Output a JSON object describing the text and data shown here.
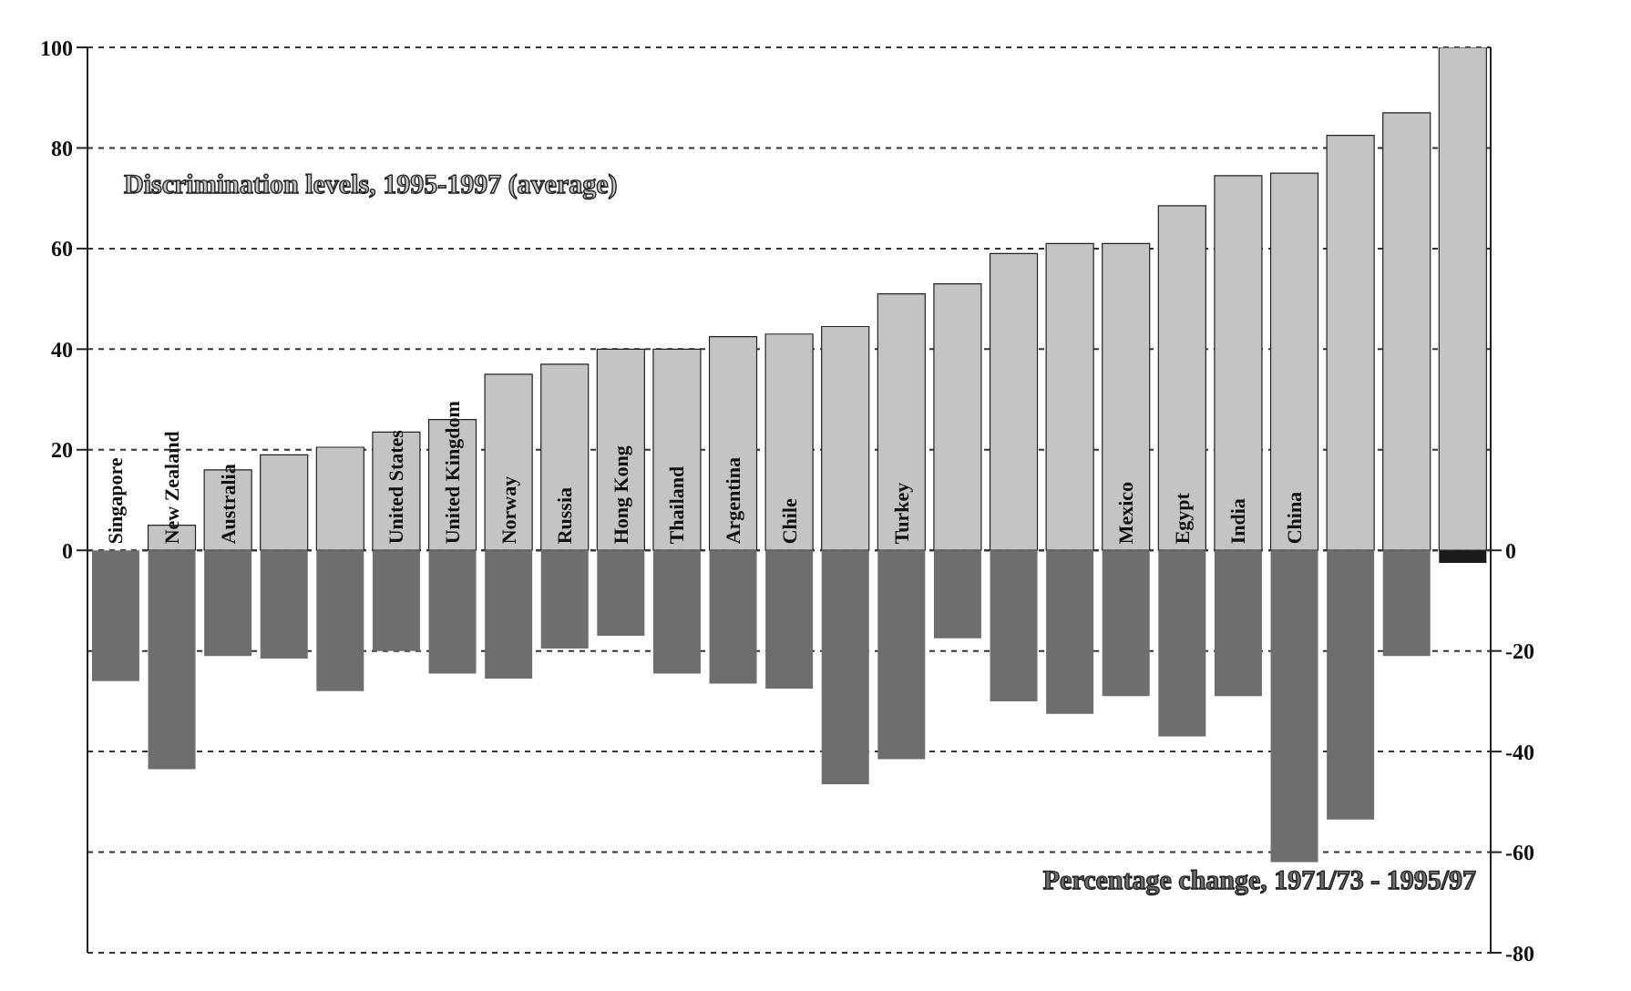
{
  "chart_data": {
    "type": "bar",
    "categories": [
      "Singapore",
      "New Zealand",
      "Australia",
      null,
      null,
      "United States",
      "United Kingdom",
      "Norway",
      "Russia",
      "Hong Kong",
      "Thailand",
      "Argentina",
      "Chile",
      null,
      "Turkey",
      null,
      null,
      null,
      "Mexico",
      "Egypt",
      "India",
      "China",
      null,
      null,
      null
    ],
    "series": [
      {
        "name": "Discrimination levels, 1995-1997 (average)",
        "color": "#c4c4c4",
        "values": [
          0,
          5,
          16,
          19,
          20.5,
          23.5,
          26,
          35,
          37,
          40,
          40,
          42.5,
          43,
          44.5,
          51,
          53,
          59,
          61,
          61,
          68.5,
          74.5,
          75,
          82.5,
          87,
          100
        ]
      },
      {
        "name": "Percentage change, 1971/73 - 1995/97",
        "color": "#6e6e6e",
        "colors": [
          "#6e6e6e",
          "#6e6e6e",
          "#6e6e6e",
          "#6e6e6e",
          "#6e6e6e",
          "#6e6e6e",
          "#6e6e6e",
          "#6e6e6e",
          "#6e6e6e",
          "#6e6e6e",
          "#6e6e6e",
          "#6e6e6e",
          "#6e6e6e",
          "#6e6e6e",
          "#6e6e6e",
          "#6e6e6e",
          "#6e6e6e",
          "#6e6e6e",
          "#6e6e6e",
          "#6e6e6e",
          "#6e6e6e",
          "#6e6e6e",
          "#6e6e6e",
          "#6e6e6e",
          "#1a1a1a"
        ],
        "values": [
          -26,
          -43.5,
          -21,
          -21.5,
          -28,
          -20,
          -24.5,
          -25.5,
          -19.5,
          -17,
          -24.5,
          -26.5,
          -27.5,
          -46.5,
          -41.5,
          -17.5,
          -30,
          -32.5,
          -29,
          -37,
          -29,
          -62,
          -53.5,
          -21,
          -2.5
        ]
      }
    ],
    "ylim": [
      -80,
      100
    ],
    "yticks": [
      0,
      20,
      40,
      60,
      80,
      100
    ],
    "y2lim": [
      -80,
      100
    ],
    "y2ticks": [
      0,
      -20,
      -40,
      -60,
      -80
    ],
    "stacked": true,
    "grid": "y"
  }
}
